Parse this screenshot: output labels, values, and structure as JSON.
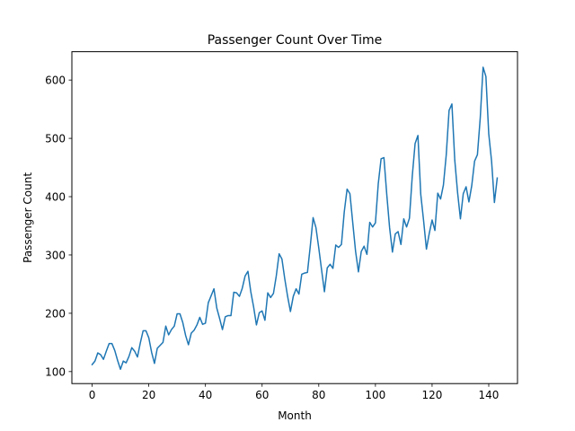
{
  "chart_data": {
    "type": "line",
    "title": "Passenger Count Over Time",
    "xlabel": "Month",
    "ylabel": "Passenger Count",
    "xlim": [
      -7.15,
      150.15
    ],
    "ylim": [
      79.4,
      648.6
    ],
    "xticks": [
      0,
      20,
      40,
      60,
      80,
      100,
      120,
      140
    ],
    "yticks": [
      100,
      200,
      300,
      400,
      500,
      600
    ],
    "grid": false,
    "series": [
      {
        "color": "#1f77b4",
        "x": [
          0,
          1,
          2,
          3,
          4,
          5,
          6,
          7,
          8,
          9,
          10,
          11,
          12,
          13,
          14,
          15,
          16,
          17,
          18,
          19,
          20,
          21,
          22,
          23,
          24,
          25,
          26,
          27,
          28,
          29,
          30,
          31,
          32,
          33,
          34,
          35,
          36,
          37,
          38,
          39,
          40,
          41,
          42,
          43,
          44,
          45,
          46,
          47,
          48,
          49,
          50,
          51,
          52,
          53,
          54,
          55,
          56,
          57,
          58,
          59,
          60,
          61,
          62,
          63,
          64,
          65,
          66,
          67,
          68,
          69,
          70,
          71,
          72,
          73,
          74,
          75,
          76,
          77,
          78,
          79,
          80,
          81,
          82,
          83,
          84,
          85,
          86,
          87,
          88,
          89,
          90,
          91,
          92,
          93,
          94,
          95,
          96,
          97,
          98,
          99,
          100,
          101,
          102,
          103,
          104,
          105,
          106,
          107,
          108,
          109,
          110,
          111,
          112,
          113,
          114,
          115,
          116,
          117,
          118,
          119,
          120,
          121,
          122,
          123,
          124,
          125,
          126,
          127,
          128,
          129,
          130,
          131,
          132,
          133,
          134,
          135,
          136,
          137,
          138,
          139,
          140,
          141,
          142,
          143
        ],
        "values": [
          112,
          118,
          132,
          129,
          121,
          135,
          148,
          148,
          136,
          119,
          104,
          118,
          115,
          126,
          141,
          135,
          125,
          149,
          170,
          170,
          158,
          133,
          114,
          140,
          145,
          150,
          178,
          163,
          172,
          178,
          199,
          199,
          184,
          162,
          146,
          166,
          171,
          180,
          193,
          181,
          183,
          218,
          230,
          242,
          209,
          191,
          172,
          194,
          196,
          196,
          236,
          235,
          229,
          243,
          264,
          272,
          237,
          211,
          180,
          201,
          204,
          188,
          235,
          227,
          234,
          264,
          302,
          293,
          259,
          229,
          203,
          229,
          242,
          233,
          267,
          269,
          270,
          315,
          364,
          347,
          312,
          274,
          237,
          278,
          284,
          277,
          317,
          313,
          318,
          374,
          413,
          405,
          355,
          306,
          271,
          306,
          315,
          301,
          356,
          348,
          355,
          422,
          465,
          467,
          404,
          347,
          305,
          336,
          340,
          318,
          362,
          348,
          363,
          435,
          491,
          505,
          404,
          359,
          310,
          337,
          360,
          342,
          406,
          396,
          420,
          472,
          548,
          559,
          463,
          407,
          362,
          405,
          417,
          391,
          419,
          461,
          472,
          535,
          622,
          606,
          508,
          461,
          390,
          432
        ]
      }
    ]
  }
}
